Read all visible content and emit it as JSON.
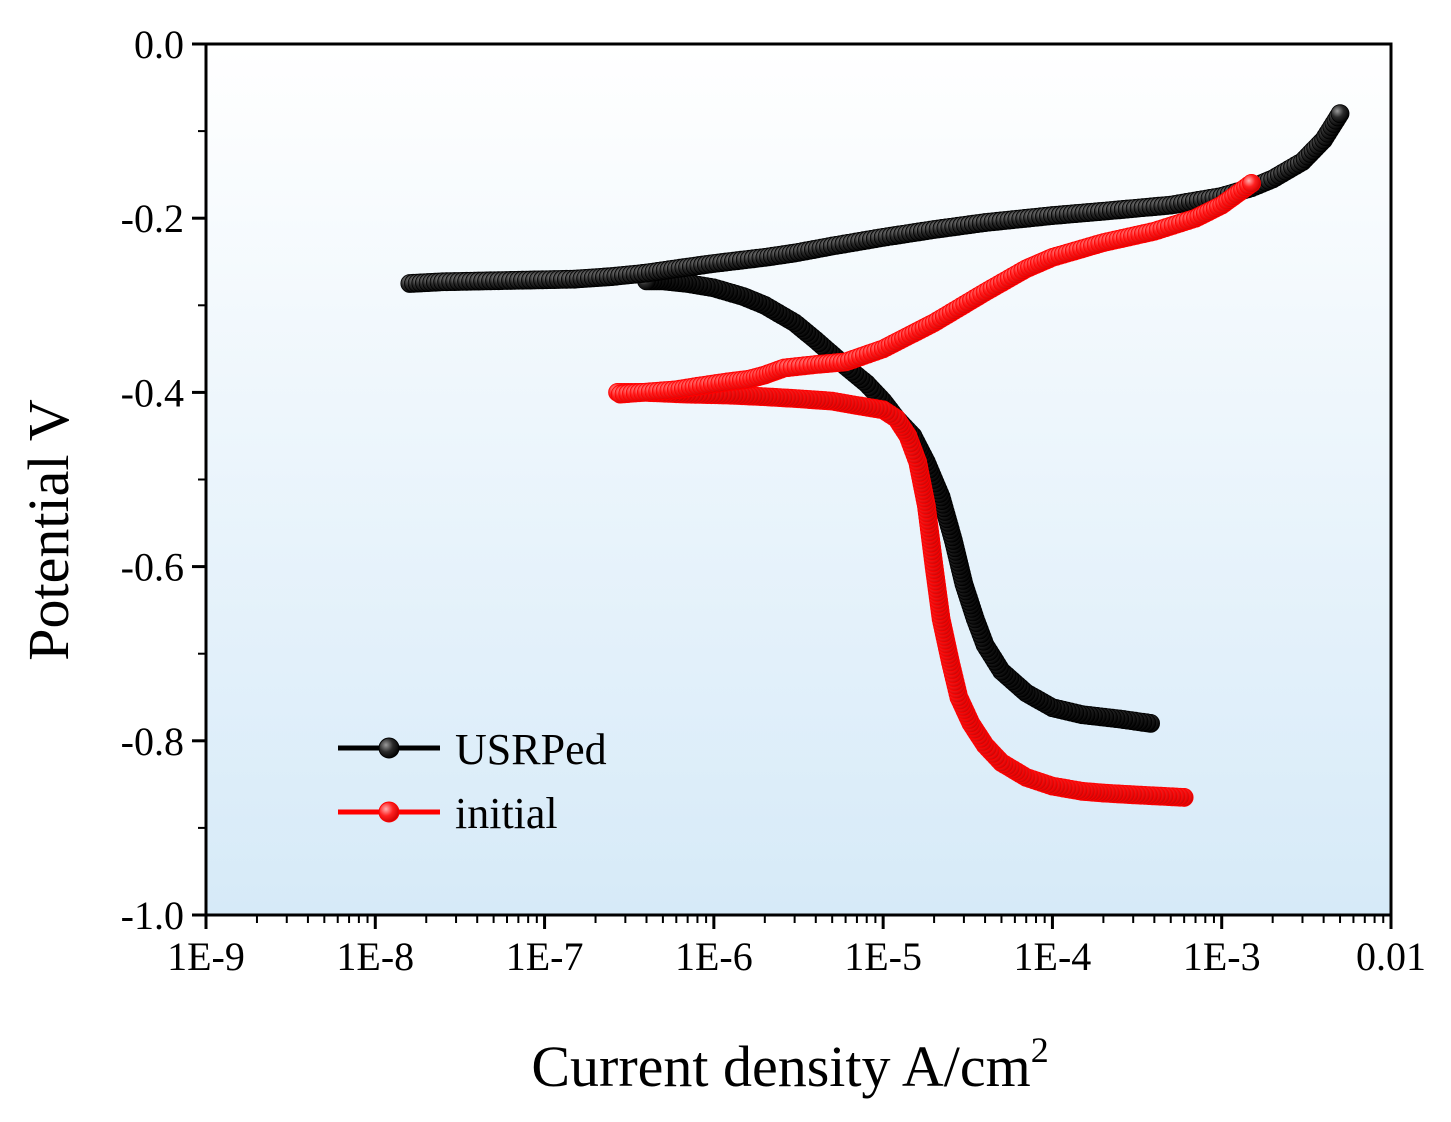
{
  "chart_data": {
    "type": "scatter",
    "title": "",
    "xlabel": "Current density A/cm",
    "xlabel_superscript": "2",
    "ylabel": "Potential V",
    "xscale": "log",
    "xlim": [
      1e-09,
      0.01
    ],
    "ylim": [
      -1.0,
      0.0
    ],
    "grid": false,
    "legend_position": "bottom-left",
    "x_tick_labels": [
      "1E-9",
      "1E-8",
      "1E-7",
      "1E-6",
      "1E-5",
      "1E-4",
      "1E-3",
      "0.01"
    ],
    "y_tick_labels": [
      "0.0",
      "-0.2",
      "-0.4",
      "-0.6",
      "-0.8",
      "-1.0"
    ],
    "y_tick_values": [
      0.0,
      -0.2,
      -0.4,
      -0.6,
      -0.8,
      -1.0
    ],
    "series": [
      {
        "name": "USRPed",
        "color": "#000000",
        "cathodic_x": [
          0.00038,
          0.00025,
          0.00015,
          0.0001,
          7e-05,
          5e-05,
          4e-05,
          3.5e-05,
          3e-05,
          2.6e-05,
          2.2e-05,
          1.8e-05,
          1.5e-05,
          1.2e-05,
          1e-05,
          8e-06,
          6e-06,
          4e-06,
          3e-06,
          2e-06,
          1.5e-06,
          1e-06,
          7e-07,
          5e-07,
          4e-07
        ],
        "cathodic_y": [
          -0.78,
          -0.775,
          -0.77,
          -0.762,
          -0.745,
          -0.72,
          -0.69,
          -0.66,
          -0.62,
          -0.57,
          -0.52,
          -0.48,
          -0.45,
          -0.43,
          -0.41,
          -0.39,
          -0.37,
          -0.34,
          -0.32,
          -0.3,
          -0.29,
          -0.28,
          -0.275,
          -0.272,
          -0.272
        ],
        "anodic_x": [
          1.6e-08,
          2.5e-08,
          1.5e-07,
          2.5e-07,
          4e-07,
          6e-07,
          1e-06,
          2e-06,
          3e-06,
          5e-06,
          1e-05,
          2e-05,
          4e-05,
          0.0001,
          0.0002,
          0.0005,
          0.001,
          0.0015,
          0.002,
          0.003,
          0.004,
          0.005
        ],
        "anodic_y": [
          -0.275,
          -0.273,
          -0.27,
          -0.267,
          -0.263,
          -0.258,
          -0.252,
          -0.245,
          -0.24,
          -0.232,
          -0.222,
          -0.213,
          -0.205,
          -0.197,
          -0.192,
          -0.185,
          -0.175,
          -0.165,
          -0.155,
          -0.135,
          -0.11,
          -0.08
        ]
      },
      {
        "name": "initial",
        "color": "#ff0000",
        "cathodic_x": [
          0.0006,
          0.0003,
          0.0002,
          0.00015,
          0.0001,
          7e-05,
          5e-05,
          4e-05,
          3.3e-05,
          2.8e-05,
          2.5e-05,
          2.2e-05,
          2e-05,
          1.8e-05,
          1.6e-05,
          1.4e-05,
          1.2e-05,
          1e-05,
          7e-06,
          5e-06,
          3e-06,
          2e-06,
          1.2e-06,
          7e-07,
          4e-07,
          2.7e-07
        ],
        "cathodic_y": [
          -0.865,
          -0.862,
          -0.86,
          -0.858,
          -0.852,
          -0.842,
          -0.825,
          -0.805,
          -0.78,
          -0.75,
          -0.71,
          -0.66,
          -0.6,
          -0.53,
          -0.48,
          -0.45,
          -0.43,
          -0.42,
          -0.415,
          -0.41,
          -0.407,
          -0.405,
          -0.403,
          -0.402,
          -0.4,
          -0.4
        ],
        "anodic_x": [
          2.8e-07,
          6e-07,
          8e-07,
          1.2e-06,
          1.6e-06,
          2e-06,
          2.6e-06,
          4e-06,
          6e-06,
          1e-05,
          2e-05,
          4e-05,
          7e-05,
          0.0001,
          0.0002,
          0.0004,
          0.0007,
          0.001,
          0.0015
        ],
        "anodic_y": [
          -0.402,
          -0.397,
          -0.393,
          -0.388,
          -0.385,
          -0.38,
          -0.372,
          -0.368,
          -0.365,
          -0.35,
          -0.32,
          -0.285,
          -0.258,
          -0.245,
          -0.228,
          -0.215,
          -0.2,
          -0.185,
          -0.16
        ]
      }
    ]
  }
}
